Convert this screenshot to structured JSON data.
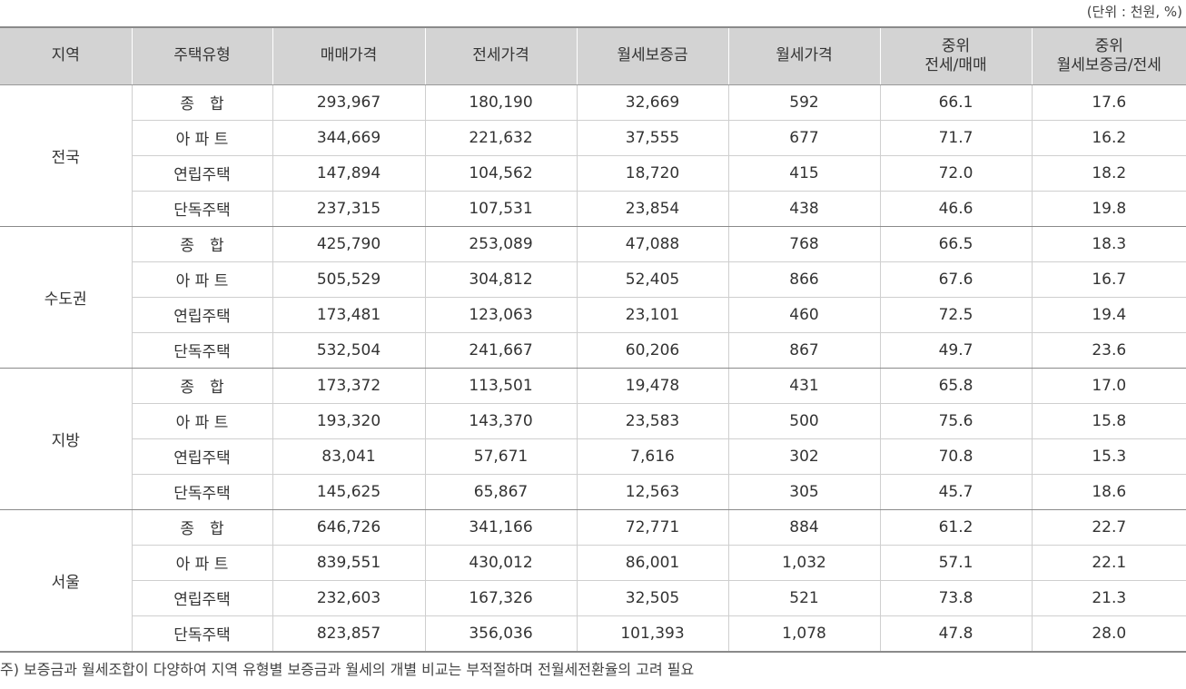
{
  "unit_label": "(단위 : 천원, %)",
  "headers": {
    "region": "지역",
    "housing_type": "주택유형",
    "sale_price": "매매가격",
    "jeonse_price": "전세가격",
    "monthly_deposit": "월세보증금",
    "monthly_rent": "월세가격",
    "ratio1_line1": "중위",
    "ratio1_line2": "전세/매매",
    "ratio2_line1": "중위",
    "ratio2_line2": "월세보증금/전세"
  },
  "groups": [
    {
      "region": "전국",
      "rows": [
        {
          "type": "종　합",
          "sale": "293,967",
          "jeonse": "180,190",
          "deposit": "32,669",
          "rent": "592",
          "r1": "66.1",
          "r2": "17.6"
        },
        {
          "type": "아 파 트",
          "sale": "344,669",
          "jeonse": "221,632",
          "deposit": "37,555",
          "rent": "677",
          "r1": "71.7",
          "r2": "16.2"
        },
        {
          "type": "연립주택",
          "sale": "147,894",
          "jeonse": "104,562",
          "deposit": "18,720",
          "rent": "415",
          "r1": "72.0",
          "r2": "18.2"
        },
        {
          "type": "단독주택",
          "sale": "237,315",
          "jeonse": "107,531",
          "deposit": "23,854",
          "rent": "438",
          "r1": "46.6",
          "r2": "19.8"
        }
      ]
    },
    {
      "region": "수도권",
      "rows": [
        {
          "type": "종　합",
          "sale": "425,790",
          "jeonse": "253,089",
          "deposit": "47,088",
          "rent": "768",
          "r1": "66.5",
          "r2": "18.3"
        },
        {
          "type": "아 파 트",
          "sale": "505,529",
          "jeonse": "304,812",
          "deposit": "52,405",
          "rent": "866",
          "r1": "67.6",
          "r2": "16.7"
        },
        {
          "type": "연립주택",
          "sale": "173,481",
          "jeonse": "123,063",
          "deposit": "23,101",
          "rent": "460",
          "r1": "72.5",
          "r2": "19.4"
        },
        {
          "type": "단독주택",
          "sale": "532,504",
          "jeonse": "241,667",
          "deposit": "60,206",
          "rent": "867",
          "r1": "49.7",
          "r2": "23.6"
        }
      ]
    },
    {
      "region": "지방",
      "rows": [
        {
          "type": "종　합",
          "sale": "173,372",
          "jeonse": "113,501",
          "deposit": "19,478",
          "rent": "431",
          "r1": "65.8",
          "r2": "17.0"
        },
        {
          "type": "아 파 트",
          "sale": "193,320",
          "jeonse": "143,370",
          "deposit": "23,583",
          "rent": "500",
          "r1": "75.6",
          "r2": "15.8"
        },
        {
          "type": "연립주택",
          "sale": "83,041",
          "jeonse": "57,671",
          "deposit": "7,616",
          "rent": "302",
          "r1": "70.8",
          "r2": "15.3"
        },
        {
          "type": "단독주택",
          "sale": "145,625",
          "jeonse": "65,867",
          "deposit": "12,563",
          "rent": "305",
          "r1": "45.7",
          "r2": "18.6"
        }
      ]
    },
    {
      "region": "서울",
      "rows": [
        {
          "type": "종　합",
          "sale": "646,726",
          "jeonse": "341,166",
          "deposit": "72,771",
          "rent": "884",
          "r1": "61.2",
          "r2": "22.7"
        },
        {
          "type": "아 파 트",
          "sale": "839,551",
          "jeonse": "430,012",
          "deposit": "86,001",
          "rent": "1,032",
          "r1": "57.1",
          "r2": "22.1"
        },
        {
          "type": "연립주택",
          "sale": "232,603",
          "jeonse": "167,326",
          "deposit": "32,505",
          "rent": "521",
          "r1": "73.8",
          "r2": "21.3"
        },
        {
          "type": "단독주택",
          "sale": "823,857",
          "jeonse": "356,036",
          "deposit": "101,393",
          "rent": "1,078",
          "r1": "47.8",
          "r2": "28.0"
        }
      ]
    }
  ],
  "footnote": "주) 보증금과 월세조합이 다양하여 지역 유형별 보증금과 월세의 개별 비교는 부적절하며 전월세전환율의 고려 필요"
}
